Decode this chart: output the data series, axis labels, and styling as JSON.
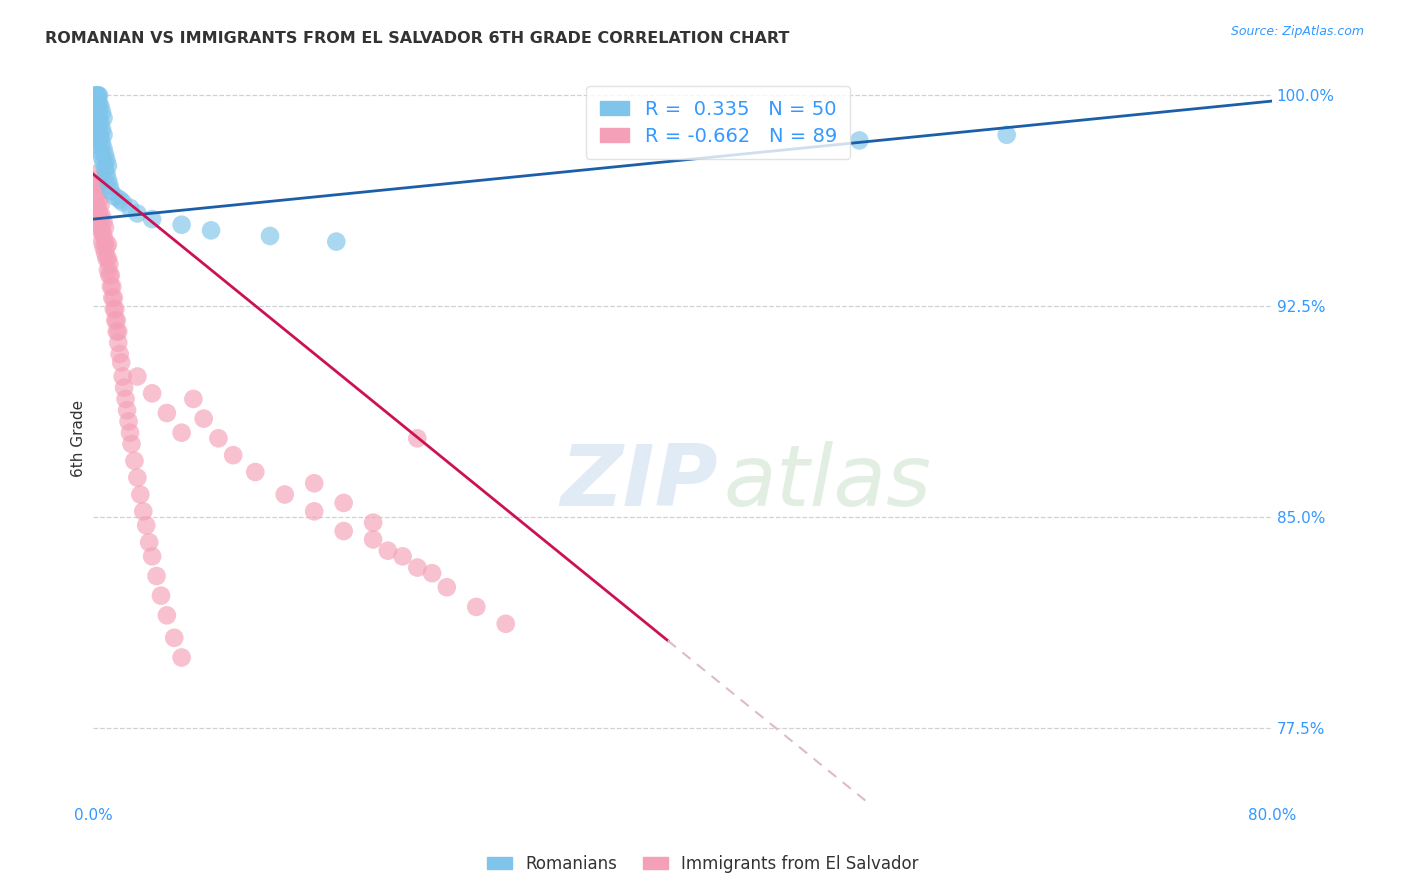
{
  "title": "ROMANIAN VS IMMIGRANTS FROM EL SALVADOR 6TH GRADE CORRELATION CHART",
  "source": "Source: ZipAtlas.com",
  "ylabel": "6th Grade",
  "xlim": [
    0.0,
    0.8
  ],
  "ylim": [
    0.748,
    1.008
  ],
  "xticks": [
    0.0,
    0.1,
    0.2,
    0.3,
    0.4,
    0.5,
    0.6,
    0.7,
    0.8
  ],
  "xticklabels": [
    "0.0%",
    "",
    "",
    "",
    "",
    "",
    "",
    "",
    "80.0%"
  ],
  "yticks": [
    0.775,
    0.85,
    0.925,
    1.0
  ],
  "yticklabels": [
    "77.5%",
    "85.0%",
    "92.5%",
    "100.0%"
  ],
  "romanian_R": 0.335,
  "romanian_N": 50,
  "salvador_R": -0.662,
  "salvador_N": 89,
  "romanian_color": "#7fc4ea",
  "salvador_color": "#f4a0b8",
  "trendline_romanian_color": "#1a5fa8",
  "trendline_salvador_color": "#cc1155",
  "trendline_dashed_color": "#ddbbc8",
  "background_color": "#ffffff",
  "grid_color": "#cccccc",
  "legend_label_romanian": "Romanians",
  "legend_label_salvador": "Immigrants from El Salvador",
  "ro_trendline": [
    [
      0.0,
      0.956
    ],
    [
      0.8,
      0.998
    ]
  ],
  "sa_trendline_solid": [
    [
      0.0,
      0.972
    ],
    [
      0.39,
      0.806
    ]
  ],
  "sa_trendline_dash": [
    [
      0.39,
      0.806
    ],
    [
      0.8,
      0.632
    ]
  ],
  "ro_x": [
    0.001,
    0.001,
    0.001,
    0.002,
    0.002,
    0.002,
    0.002,
    0.003,
    0.003,
    0.003,
    0.003,
    0.003,
    0.003,
    0.004,
    0.004,
    0.004,
    0.004,
    0.004,
    0.005,
    0.005,
    0.005,
    0.005,
    0.006,
    0.006,
    0.006,
    0.006,
    0.007,
    0.007,
    0.007,
    0.007,
    0.008,
    0.008,
    0.009,
    0.009,
    0.01,
    0.01,
    0.011,
    0.012,
    0.015,
    0.018,
    0.02,
    0.025,
    0.03,
    0.04,
    0.06,
    0.08,
    0.12,
    0.165,
    0.52,
    0.62
  ],
  "ro_y": [
    0.99,
    0.995,
    1.0,
    0.988,
    0.992,
    0.997,
    1.0,
    0.985,
    0.99,
    0.995,
    0.998,
    1.0,
    1.0,
    0.982,
    0.986,
    0.992,
    0.997,
    1.0,
    0.98,
    0.985,
    0.99,
    0.996,
    0.978,
    0.983,
    0.988,
    0.994,
    0.976,
    0.981,
    0.986,
    0.992,
    0.974,
    0.979,
    0.972,
    0.977,
    0.97,
    0.975,
    0.968,
    0.966,
    0.964,
    0.963,
    0.962,
    0.96,
    0.958,
    0.956,
    0.954,
    0.952,
    0.95,
    0.948,
    0.984,
    0.986
  ],
  "sa_x": [
    0.001,
    0.001,
    0.002,
    0.002,
    0.002,
    0.003,
    0.003,
    0.003,
    0.003,
    0.004,
    0.004,
    0.004,
    0.004,
    0.005,
    0.005,
    0.005,
    0.006,
    0.006,
    0.006,
    0.007,
    0.007,
    0.007,
    0.008,
    0.008,
    0.008,
    0.009,
    0.009,
    0.01,
    0.01,
    0.01,
    0.011,
    0.011,
    0.012,
    0.012,
    0.013,
    0.013,
    0.014,
    0.014,
    0.015,
    0.015,
    0.016,
    0.016,
    0.017,
    0.017,
    0.018,
    0.019,
    0.02,
    0.021,
    0.022,
    0.023,
    0.024,
    0.025,
    0.026,
    0.028,
    0.03,
    0.032,
    0.034,
    0.036,
    0.038,
    0.04,
    0.043,
    0.046,
    0.05,
    0.055,
    0.06,
    0.068,
    0.075,
    0.085,
    0.095,
    0.11,
    0.13,
    0.15,
    0.17,
    0.2,
    0.22,
    0.24,
    0.26,
    0.28,
    0.19,
    0.21,
    0.23,
    0.17,
    0.19,
    0.15,
    0.22,
    0.03,
    0.04,
    0.05,
    0.06
  ],
  "sa_y": [
    0.968,
    0.972,
    0.96,
    0.964,
    0.968,
    0.956,
    0.96,
    0.965,
    0.97,
    0.954,
    0.958,
    0.963,
    0.968,
    0.952,
    0.956,
    0.961,
    0.948,
    0.952,
    0.957,
    0.946,
    0.95,
    0.955,
    0.944,
    0.948,
    0.953,
    0.942,
    0.946,
    0.938,
    0.942,
    0.947,
    0.936,
    0.94,
    0.932,
    0.936,
    0.928,
    0.932,
    0.924,
    0.928,
    0.92,
    0.924,
    0.916,
    0.92,
    0.912,
    0.916,
    0.908,
    0.905,
    0.9,
    0.896,
    0.892,
    0.888,
    0.884,
    0.88,
    0.876,
    0.87,
    0.864,
    0.858,
    0.852,
    0.847,
    0.841,
    0.836,
    0.829,
    0.822,
    0.815,
    0.807,
    0.8,
    0.892,
    0.885,
    0.878,
    0.872,
    0.866,
    0.858,
    0.852,
    0.845,
    0.838,
    0.832,
    0.825,
    0.818,
    0.812,
    0.842,
    0.836,
    0.83,
    0.855,
    0.848,
    0.862,
    0.878,
    0.9,
    0.894,
    0.887,
    0.88
  ]
}
